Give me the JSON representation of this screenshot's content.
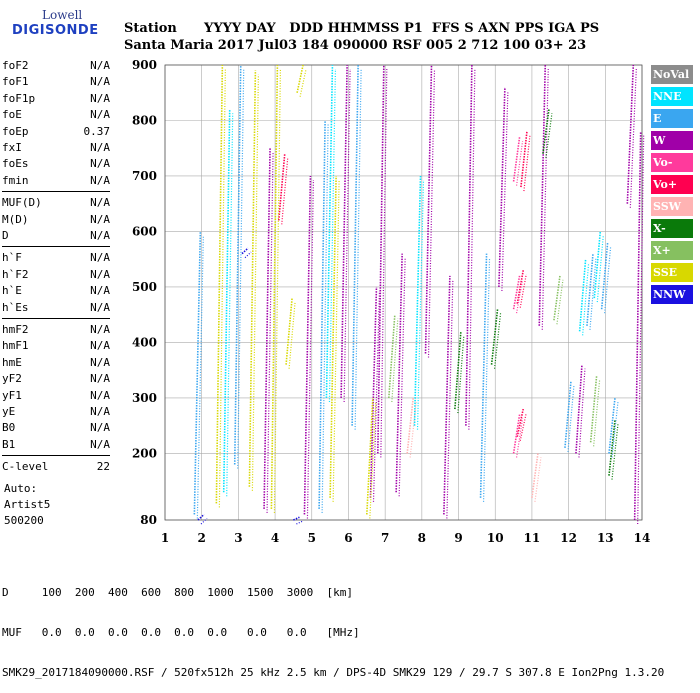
{
  "logo": {
    "top": "Lowell",
    "bottom": "DIGISONDE"
  },
  "header": {
    "labels": "Station      YYYY DAY   DDD HHMMSS P1  FFS S AXN PPS IGA PS",
    "values": "Santa Maria 2017 Jul03 184 090000 RSF 005 2 712 100 03+ 23"
  },
  "left_panel": {
    "group1": [
      {
        "name": "foF2",
        "value": "N/A"
      },
      {
        "name": "foF1",
        "value": "N/A"
      },
      {
        "name": "foF1p",
        "value": "N/A"
      },
      {
        "name": "foE",
        "value": "N/A"
      },
      {
        "name": "foEp",
        "value": "0.37"
      },
      {
        "name": "fxI",
        "value": "N/A"
      },
      {
        "name": "foEs",
        "value": "N/A"
      },
      {
        "name": "fmin",
        "value": "N/A"
      }
    ],
    "group2": [
      {
        "name": "MUF(D)",
        "value": "N/A"
      },
      {
        "name": "M(D)",
        "value": "N/A"
      },
      {
        "name": "D",
        "value": "N/A"
      }
    ],
    "group3": [
      {
        "name": "h`F",
        "value": "N/A"
      },
      {
        "name": "h`F2",
        "value": "N/A"
      },
      {
        "name": "h`E",
        "value": "N/A"
      },
      {
        "name": "h`Es",
        "value": "N/A"
      }
    ],
    "group4": [
      {
        "name": "hmF2",
        "value": "N/A"
      },
      {
        "name": "hmF1",
        "value": "N/A"
      },
      {
        "name": "hmE",
        "value": "N/A"
      },
      {
        "name": "yF2",
        "value": "N/A"
      },
      {
        "name": "yF1",
        "value": "N/A"
      },
      {
        "name": "yE",
        "value": "N/A"
      },
      {
        "name": "B0",
        "value": "N/A"
      },
      {
        "name": "B1",
        "value": "N/A"
      }
    ],
    "clevel": {
      "name": "C-level",
      "value": "22"
    },
    "auto_lines": [
      "Auto:",
      "Artist5",
      "500200"
    ]
  },
  "legend": [
    {
      "label": "NoVal",
      "color": "#8c8c8c"
    },
    {
      "label": "NNE",
      "color": "#00e4ff"
    },
    {
      "label": "E",
      "color": "#3aa6f0"
    },
    {
      "label": "W",
      "color": "#a000a8"
    },
    {
      "label": "Vo-",
      "color": "#ff3a9c"
    },
    {
      "label": "Vo+",
      "color": "#ff0050"
    },
    {
      "label": "SSW",
      "color": "#ffb3b3"
    },
    {
      "label": "X-",
      "color": "#0a7a0a"
    },
    {
      "label": "X+",
      "color": "#86c060"
    },
    {
      "label": "SSE",
      "color": "#d8d800"
    },
    {
      "label": "NNW",
      "color": "#1a10e0"
    }
  ],
  "footer": {
    "line1": "D     100  200  400  600  800  1000  1500  3000  [km]",
    "line2": "MUF   0.0  0.0  0.0  0.0  0.0  0.0   0.0   0.0   [MHz]",
    "line3": "SMK29_2017184090000.RSF / 520fx512h 25 kHz 2.5 km / DPS-4D SMK29 129 / 29.7 S 307.8 E Ion2Png 1.3.20"
  },
  "chart_data": {
    "type": "scatter",
    "x_ticks": [
      "1",
      "2",
      "3",
      "4",
      "5",
      "6",
      "7",
      "8",
      "9",
      "10",
      "11",
      "12",
      "13",
      "14"
    ],
    "y_ticks": [
      "80",
      "200",
      "300",
      "400",
      "500",
      "600",
      "700",
      "800",
      "900"
    ],
    "xlim": [
      1,
      14
    ],
    "ylim": [
      80,
      900
    ],
    "grid": true,
    "legend_position": "right",
    "series": [
      {
        "name": "NNE",
        "color": "#00e4ff",
        "traces": [
          [
            2.6,
            130,
            820
          ],
          [
            5.4,
            300,
            900
          ],
          [
            7.8,
            250,
            700
          ],
          [
            12.3,
            420,
            550
          ],
          [
            12.7,
            480,
            600
          ]
        ]
      },
      {
        "name": "E",
        "color": "#3aa6f0",
        "traces": [
          [
            1.8,
            90,
            600
          ],
          [
            2.9,
            180,
            900
          ],
          [
            5.2,
            100,
            800
          ],
          [
            6.1,
            250,
            900
          ],
          [
            9.6,
            120,
            560
          ],
          [
            11.9,
            210,
            330
          ],
          [
            12.5,
            430,
            560
          ],
          [
            12.9,
            460,
            580
          ],
          [
            13.1,
            200,
            300
          ]
        ]
      },
      {
        "name": "W",
        "color": "#a000a8",
        "traces": [
          [
            3.7,
            100,
            750
          ],
          [
            4.8,
            90,
            700
          ],
          [
            5.8,
            300,
            900
          ],
          [
            6.6,
            120,
            500
          ],
          [
            6.8,
            200,
            900
          ],
          [
            7.3,
            130,
            560
          ],
          [
            8.1,
            380,
            900
          ],
          [
            8.6,
            90,
            520
          ],
          [
            9.2,
            250,
            900
          ],
          [
            10.1,
            500,
            860
          ],
          [
            11.2,
            430,
            900
          ],
          [
            12.2,
            200,
            360
          ],
          [
            13.6,
            650,
            900
          ],
          [
            13.8,
            80,
            780
          ]
        ]
      },
      {
        "name": "Vo+",
        "color": "#ff0050",
        "traces": [
          [
            4.1,
            620,
            740
          ],
          [
            10.6,
            230,
            280
          ],
          [
            10.6,
            470,
            530
          ],
          [
            10.7,
            680,
            780
          ]
        ]
      },
      {
        "name": "Vo-",
        "color": "#ff3a9c",
        "traces": [
          [
            10.5,
            200,
            270
          ],
          [
            10.5,
            460,
            520
          ],
          [
            10.5,
            690,
            770
          ]
        ]
      },
      {
        "name": "SSE",
        "color": "#d8d800",
        "traces": [
          [
            2.4,
            110,
            900
          ],
          [
            3.3,
            140,
            890
          ],
          [
            3.9,
            100,
            900
          ],
          [
            4.3,
            360,
            480
          ],
          [
            4.6,
            850,
            900
          ],
          [
            5.5,
            120,
            700
          ],
          [
            6.5,
            90,
            300
          ]
        ]
      },
      {
        "name": "X-",
        "color": "#0a7a0a",
        "traces": [
          [
            8.9,
            280,
            420
          ],
          [
            9.9,
            360,
            460
          ],
          [
            11.3,
            740,
            820
          ],
          [
            13.1,
            160,
            260
          ]
        ]
      },
      {
        "name": "X+",
        "color": "#86c060",
        "traces": [
          [
            7.1,
            300,
            450
          ],
          [
            11.6,
            440,
            520
          ],
          [
            12.6,
            220,
            340
          ]
        ]
      },
      {
        "name": "NNW",
        "color": "#1a10e0",
        "traces": [
          [
            1.9,
            80,
            90
          ],
          [
            3.1,
            560,
            570
          ],
          [
            4.5,
            80,
            85
          ]
        ]
      },
      {
        "name": "SSW",
        "color": "#ffb3b3",
        "traces": [
          [
            7.6,
            200,
            300
          ],
          [
            11.0,
            120,
            200
          ]
        ]
      }
    ]
  }
}
